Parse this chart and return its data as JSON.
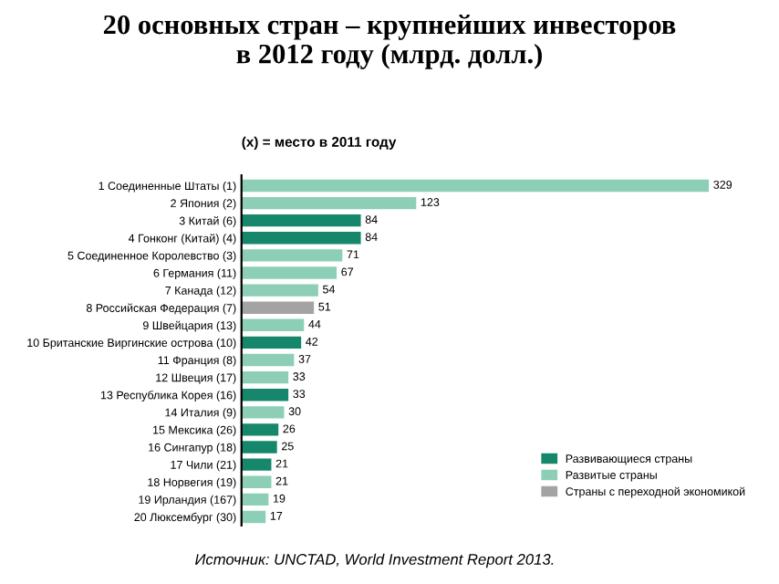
{
  "chart_data": {
    "type": "bar",
    "orientation": "horizontal",
    "stacked": true,
    "relative": false,
    "title": "20 основных стран – крупнейших инвесторов\nв 2012 году (млрд. долл.)",
    "subtitle": "(х) = место в 2011 году",
    "categories": [
      "1 Соединенные Штаты (1)",
      "2 Япония (2)",
      "3 Китай (6)",
      "4 Гонконг (Китай) (4)",
      "5 Соединенное Королевство (3)",
      "6 Германия (11)",
      "7 Канада (12)",
      "8 Российская Федерация (7)",
      "9 Швейцария (13)",
      "10 Британские Виргинские острова (10)",
      "11 Франция (8)",
      "12 Швеция (17)",
      "13 Республика Корея (16)",
      "14 Италия (9)",
      "15 Мексика (26)",
      "16 Сингапур (18)",
      "17 Чили (21)",
      "18 Норвегия (19)",
      "19 Ирландия (167)",
      "20 Люксембург (30)"
    ],
    "series": [
      {
        "name": "Развивающиеся страны",
        "color": "#16876a",
        "values": [
          null,
          null,
          84,
          84,
          null,
          null,
          null,
          null,
          null,
          42,
          null,
          null,
          33,
          null,
          26,
          25,
          21,
          null,
          null,
          null
        ]
      },
      {
        "name": "Развитые страны",
        "color": "#8ccfb6",
        "values": [
          329,
          123,
          null,
          null,
          71,
          67,
          54,
          null,
          44,
          null,
          37,
          33,
          null,
          30,
          null,
          null,
          null,
          21,
          19,
          17
        ]
      },
      {
        "name": "Страны с переходной экономикой",
        "color": "#a3a3a3",
        "values": [
          null,
          null,
          null,
          null,
          null,
          null,
          null,
          51,
          null,
          null,
          null,
          null,
          null,
          null,
          null,
          null,
          null,
          null,
          null,
          null
        ]
      }
    ],
    "data_labels": true,
    "legend": "bottom right",
    "grid": false,
    "annotations": [
      "Источник: UNCTAD, World Investment Report 2013."
    ]
  }
}
